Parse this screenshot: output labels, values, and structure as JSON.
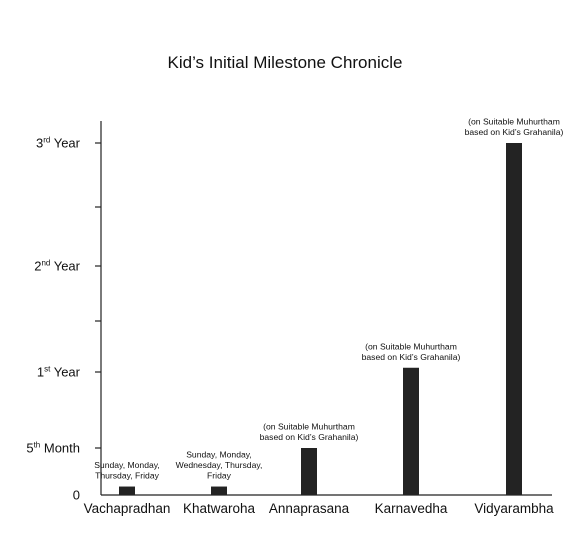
{
  "chart_data": {
    "type": "bar",
    "title": "Kid’s Initial Milestone Chronicle",
    "xlabel": "",
    "ylabel": "",
    "y_unit": "months",
    "ylim": [
      0,
      36
    ],
    "y_ticks": [
      {
        "value": 0,
        "base": "0",
        "sup": "",
        "rest": ""
      },
      {
        "value": 5,
        "base": "5",
        "sup": "th",
        "rest": " Month"
      },
      {
        "value": 12,
        "base": "1",
        "sup": "st",
        "rest": " Year"
      },
      {
        "value": 18,
        "base": "",
        "sup": "",
        "rest": ""
      },
      {
        "value": 24,
        "base": "2",
        "sup": "nd",
        "rest": " Year"
      },
      {
        "value": 30,
        "base": "",
        "sup": "",
        "rest": ""
      },
      {
        "value": 36,
        "base": "3",
        "sup": "rd",
        "rest": " Year"
      }
    ],
    "categories": [
      "Vachapradhan",
      "Khatwaroha",
      "Annaprasana",
      "Karnavedha",
      "Vidyarambha"
    ],
    "values": [
      0.9,
      0.9,
      5,
      12.5,
      36
    ],
    "annotations": [
      [
        "Sunday, Monday,",
        "Thursday, Friday"
      ],
      [
        "Sunday, Monday,",
        "Wednesday, Thursday,",
        "Friday"
      ],
      [
        "(on Suitable Muhurtham",
        "based on Kid’s Grahanila)"
      ],
      [
        "(on Suitable Muhurtham",
        "based on Kid’s Grahanila)"
      ],
      [
        "(on Suitable Muhurtham",
        "based on Kid’s Grahanila)"
      ]
    ],
    "grid": false,
    "legend": "none"
  }
}
